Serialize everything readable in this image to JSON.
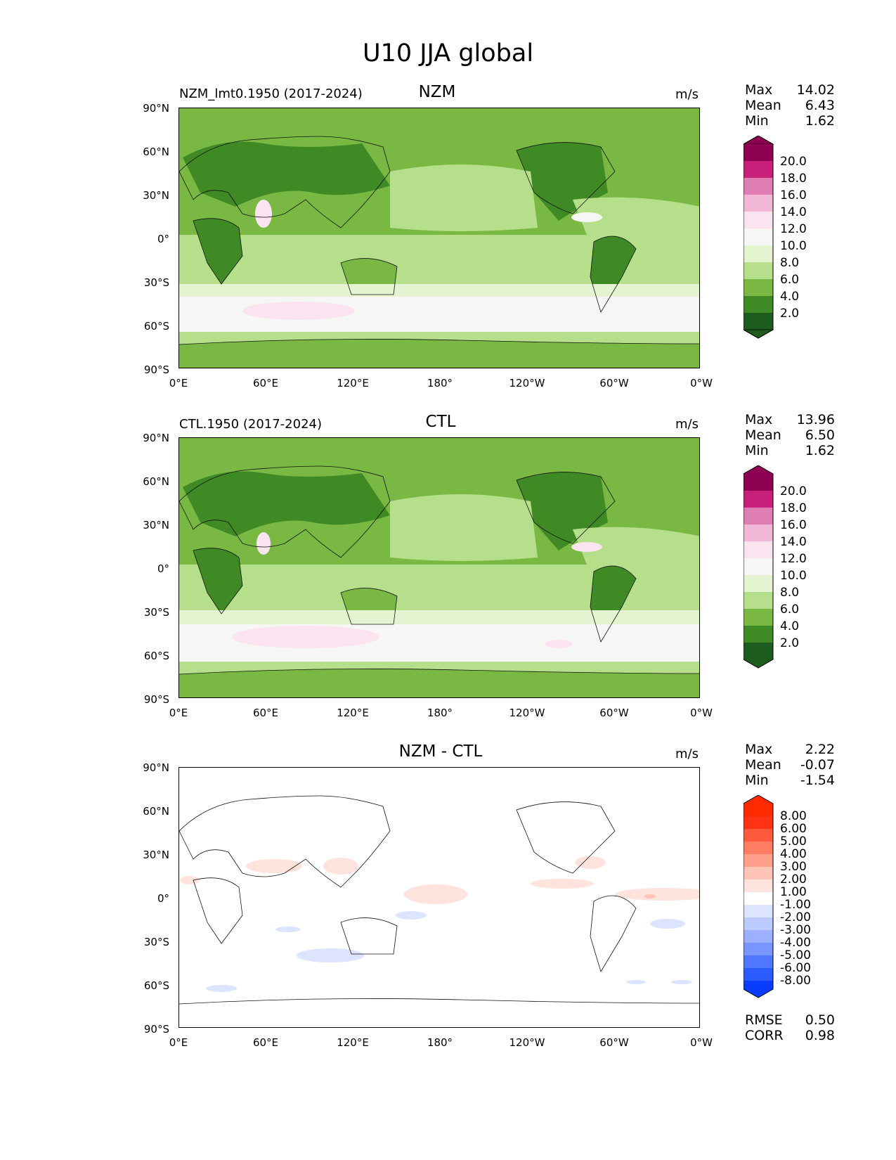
{
  "title": "U10 JJA global",
  "units": "m/s",
  "x_ticks": [
    "0°E",
    "60°E",
    "120°E",
    "180°",
    "120°W",
    "60°W",
    "0°W"
  ],
  "y_ticks": [
    "90°N",
    "60°N",
    "30°N",
    "0°",
    "30°S",
    "60°S",
    "90°S"
  ],
  "colors": {
    "green_scale": [
      "#1e5c1e",
      "#3f8a24",
      "#7ab844",
      "#b5df8a",
      "#e4f4d1",
      "#f6f6f4",
      "#fbe3ef",
      "#f2b7d6",
      "#e07db3",
      "#c7207a",
      "#8e0152"
    ],
    "diff_scale": [
      "#0a3cff",
      "#2c5cff",
      "#5078ff",
      "#7896ff",
      "#9db0ff",
      "#bccbff",
      "#dce4ff",
      "#ffffff",
      "#ffe3dc",
      "#ffc4b5",
      "#ffa08c",
      "#ff7d63",
      "#ff5a3c",
      "#ff3214",
      "#ff2a00"
    ]
  },
  "panels": [
    {
      "left_label": "NZM_lmt0.1950 (2017-2024)",
      "title": "NZM",
      "units": "m/s",
      "stats": [
        {
          "label": "Max",
          "value": "14.02"
        },
        {
          "label": "Mean",
          "value": "6.43"
        },
        {
          "label": "Min",
          "value": "1.62"
        }
      ],
      "colorbar_labels": [
        "20.0",
        "18.0",
        "16.0",
        "14.0",
        "12.0",
        "10.0",
        "8.0",
        "6.0",
        "4.0",
        "2.0"
      ]
    },
    {
      "left_label": "CTL.1950 (2017-2024)",
      "title": "CTL",
      "units": "m/s",
      "stats": [
        {
          "label": "Max",
          "value": "13.96"
        },
        {
          "label": "Mean",
          "value": "6.50"
        },
        {
          "label": "Min",
          "value": "1.62"
        }
      ],
      "colorbar_labels": [
        "20.0",
        "18.0",
        "16.0",
        "14.0",
        "12.0",
        "10.0",
        "8.0",
        "6.0",
        "4.0",
        "2.0"
      ]
    },
    {
      "left_label": "",
      "title": "NZM - CTL",
      "units": "m/s",
      "stats": [
        {
          "label": "Max",
          "value": "2.22"
        },
        {
          "label": "Mean",
          "value": "-0.07"
        },
        {
          "label": "Min",
          "value": "-1.54"
        }
      ],
      "colorbar_labels": [
        "8.00",
        "6.00",
        "5.00",
        "4.00",
        "3.00",
        "2.00",
        "1.00",
        "-1.00",
        "-2.00",
        "-3.00",
        "-4.00",
        "-5.00",
        "-6.00",
        "-8.00"
      ],
      "extra_stats": [
        {
          "label": "RMSE",
          "value": "0.50"
        },
        {
          "label": "CORR",
          "value": "0.98"
        }
      ]
    }
  ],
  "chart_data": {
    "type": "heatmap",
    "title": "U10 JJA global",
    "subplots": [
      {
        "name": "NZM",
        "field": "U10 JJA",
        "units": "m/s",
        "max": 14.02,
        "mean": 6.43,
        "min": 1.62,
        "levels": [
          2,
          4,
          6,
          8,
          10,
          12,
          14,
          16,
          18,
          20
        ]
      },
      {
        "name": "CTL",
        "field": "U10 JJA",
        "units": "m/s",
        "max": 13.96,
        "mean": 6.5,
        "min": 1.62,
        "levels": [
          2,
          4,
          6,
          8,
          10,
          12,
          14,
          16,
          18,
          20
        ]
      },
      {
        "name": "NZM - CTL",
        "field": "U10 JJA difference",
        "units": "m/s",
        "max": 2.22,
        "mean": -0.07,
        "min": -1.54,
        "rmse": 0.5,
        "corr": 0.98,
        "levels": [
          -8,
          -6,
          -5,
          -4,
          -3,
          -2,
          -1,
          1,
          2,
          3,
          4,
          5,
          6,
          8
        ]
      }
    ],
    "xlabel": "",
    "ylabel": "",
    "xlim": [
      0,
      360
    ],
    "ylim": [
      -90,
      90
    ]
  }
}
